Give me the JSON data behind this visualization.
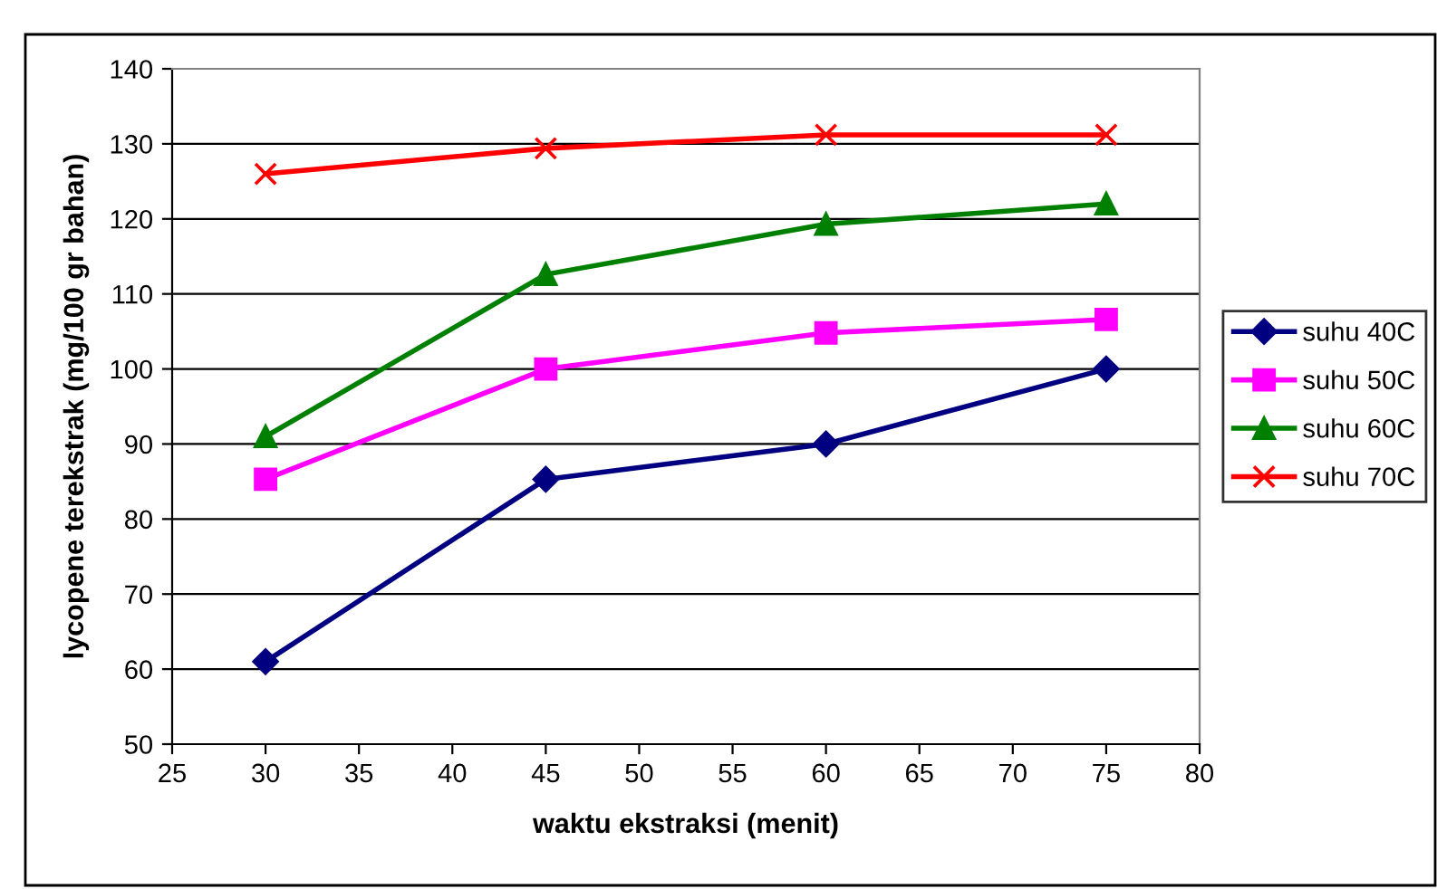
{
  "chart_data": {
    "type": "line",
    "xlabel": "waktu ekstraksi (menit)",
    "ylabel": "lycopene terekstrak (mg/100 gr bahan)",
    "x": [
      30,
      45,
      60,
      75
    ],
    "series": [
      {
        "name": "suhu 40C",
        "color": "#000080",
        "marker": "diamond",
        "values": [
          61,
          85.3,
          90,
          100
        ]
      },
      {
        "name": "suhu 50C",
        "color": "#ff00ff",
        "marker": "square",
        "values": [
          85.3,
          100,
          104.8,
          106.6
        ]
      },
      {
        "name": "suhu 60C",
        "color": "#008000",
        "marker": "triangle",
        "values": [
          91,
          112.6,
          119.3,
          122
        ]
      },
      {
        "name": "suhu 70C",
        "color": "#ff0000",
        "marker": "cross",
        "values": [
          126,
          129.4,
          131.2,
          131.2
        ]
      }
    ],
    "xlim": [
      25,
      80
    ],
    "xticks": [
      25,
      30,
      35,
      40,
      45,
      50,
      55,
      60,
      65,
      70,
      75,
      80
    ],
    "ylim": [
      50,
      140
    ],
    "yticks": [
      50,
      60,
      70,
      80,
      90,
      100,
      110,
      120,
      130,
      140
    ],
    "grid": "y",
    "legend": "right",
    "line_style": "solid"
  }
}
